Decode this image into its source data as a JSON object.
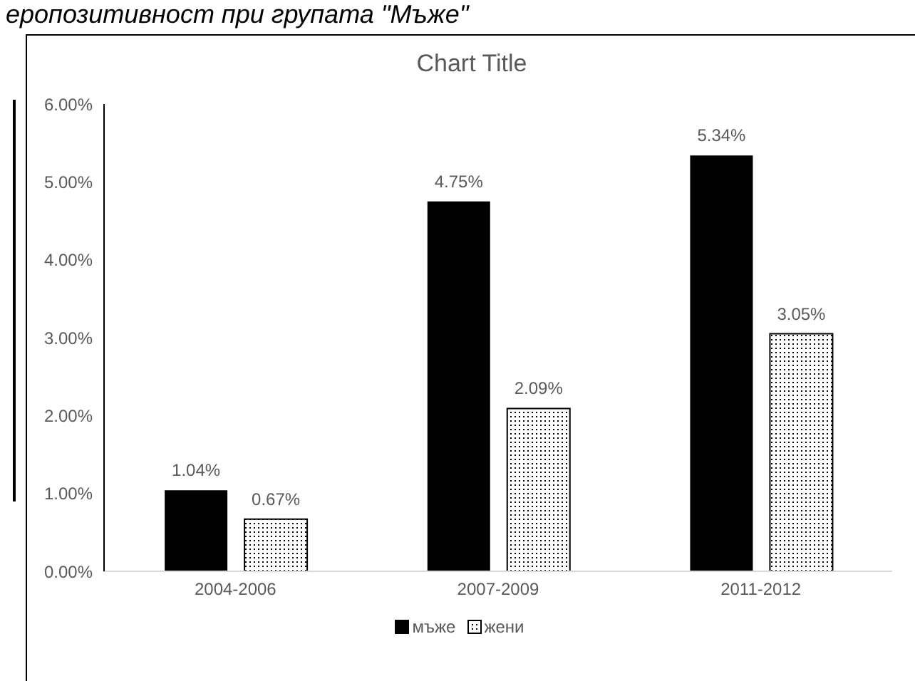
{
  "chart_data": {
    "type": "bar",
    "title": "Chart Title",
    "annotations": [
      "еропозитивност при групата \"Мъже\""
    ],
    "categories": [
      "2004-2006",
      "2007-2009",
      "2011-2012"
    ],
    "series": [
      {
        "name": "мъже",
        "color": "#000000",
        "values": [
          1.04,
          4.75,
          5.34
        ],
        "value_labels": [
          "1.04%",
          "4.75%",
          "5.34%"
        ]
      },
      {
        "name": "жени",
        "color": "#000000",
        "values": [
          0.67,
          2.09,
          3.05
        ],
        "value_labels": [
          "0.67%",
          "2.09%",
          "3.05%"
        ]
      }
    ],
    "ylim": [
      0,
      6
    ],
    "yticks": [
      {
        "value": 0,
        "label": "0.00%"
      },
      {
        "value": 1,
        "label": "1.00%"
      },
      {
        "value": 2,
        "label": "2.00%"
      },
      {
        "value": 3,
        "label": "3.00%"
      },
      {
        "value": 4,
        "label": "4.00%"
      },
      {
        "value": 5,
        "label": "5.00%"
      },
      {
        "value": 6,
        "label": "6.00%"
      }
    ],
    "legend": "bottom"
  }
}
